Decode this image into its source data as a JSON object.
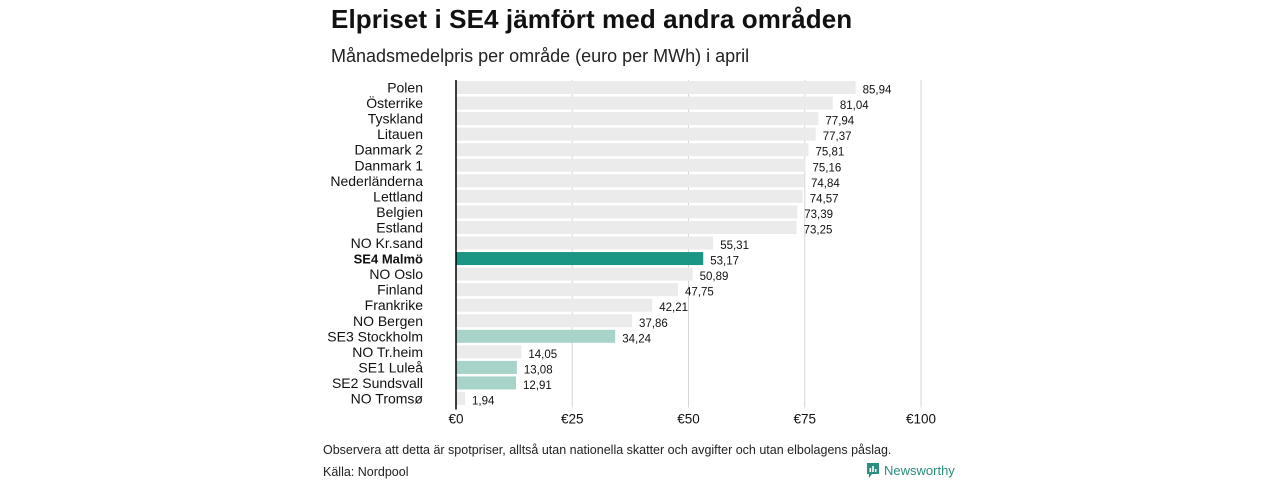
{
  "title": "Elpriset i SE4 jämfört med andra områden",
  "subtitle": "Månadsmedelpris per område (euro per MWh) i april",
  "note": "Observera att detta är spotpriser, alltså utan nationella skatter och avgifter och utan elbolagens påslag.",
  "source": "Källa: Nordpool",
  "logo": {
    "text": "Newsworthy",
    "icon": "newsworthy-logo-icon"
  },
  "colors": {
    "default_bar": "#ebebeb",
    "highlight_bar": "#1b9685",
    "se_bar": "#a8d3c9",
    "axis_line": "#000000",
    "grid": "#d6d6d6",
    "brand": "#2a8f7e"
  },
  "chart_data": {
    "type": "bar",
    "orientation": "horizontal",
    "categories": [
      "Polen",
      "Österrike",
      "Tyskland",
      "Litauen",
      "Danmark  2",
      "Danmark  1",
      "Nederländerna",
      "Lettland",
      "Belgien",
      "Estland",
      "NO Kr.sand",
      "SE4 Malmö",
      "NO Oslo",
      "Finland",
      "Frankrike",
      "NO Bergen",
      "SE3  Stockholm",
      "NO Tr.heim",
      "SE1  Luleå",
      "SE2  Sundsvall",
      "NO Tromsø"
    ],
    "values": [
      85.94,
      81.04,
      77.94,
      77.37,
      75.81,
      75.16,
      74.84,
      74.57,
      73.39,
      73.25,
      55.31,
      53.17,
      50.89,
      47.75,
      42.21,
      37.86,
      34.24,
      14.05,
      13.08,
      12.91,
      1.94
    ],
    "value_labels": [
      "85,94",
      "81,04",
      "77,94",
      "77,37",
      "75,81",
      "75,16",
      "74,84",
      "74,57",
      "73,39",
      "73,25",
      "55,31",
      "53,17",
      "50,89",
      "47,75",
      "42,21",
      "37,86",
      "34,24",
      "14,05",
      "13,08",
      "12,91",
      "1,94"
    ],
    "bar_style": [
      "default",
      "default",
      "default",
      "default",
      "default",
      "default",
      "default",
      "default",
      "default",
      "default",
      "default",
      "highlight",
      "default",
      "default",
      "default",
      "default",
      "se",
      "default",
      "se",
      "se",
      "default"
    ],
    "xlim": [
      0,
      100
    ],
    "xticks": [
      0,
      25,
      50,
      75,
      100
    ],
    "xtick_labels": [
      "€0",
      "€25",
      "€50",
      "€75",
      "€100"
    ],
    "grid": true,
    "legend": "none"
  }
}
